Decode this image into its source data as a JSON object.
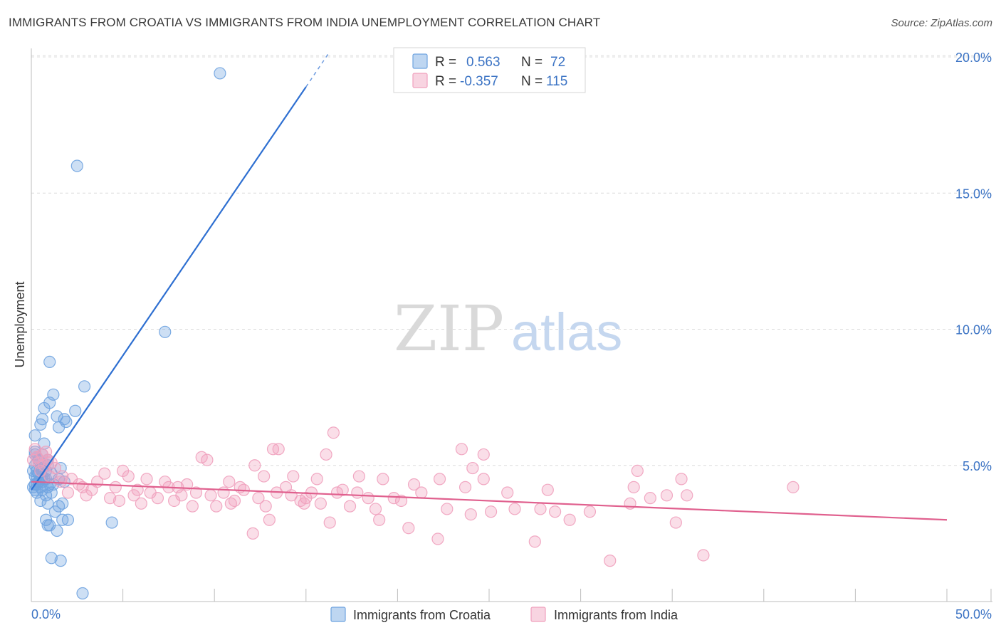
{
  "title": "IMMIGRANTS FROM CROATIA VS IMMIGRANTS FROM INDIA UNEMPLOYMENT CORRELATION CHART",
  "source": "Source: ZipAtlas.com",
  "watermark": {
    "zip": "ZIP",
    "atlas": "atlas"
  },
  "legend": {
    "r_label": "R =",
    "n_label": "N =",
    "rows": [
      {
        "r": "0.563",
        "n": "72",
        "color": "#6fa3e0"
      },
      {
        "r": "-0.357",
        "n": "115",
        "color": "#f0a0bd"
      }
    ]
  },
  "chart_data": {
    "type": "scatter",
    "title": "IMMIGRANTS FROM CROATIA VS IMMIGRANTS FROM INDIA UNEMPLOYMENT CORRELATION CHART",
    "xlabel": "",
    "ylabel": "Unemployment",
    "xlim": [
      0,
      50
    ],
    "ylim": [
      0,
      20
    ],
    "x_tick_labels": [
      "0.0%",
      "50.0%"
    ],
    "y_ticks": [
      5,
      10,
      15,
      20
    ],
    "y_tick_labels": [
      "5.0%",
      "10.0%",
      "15.0%",
      "20.0%"
    ],
    "grid": true,
    "legend_position": "top-center",
    "series": [
      {
        "name": "Immigrants from Croatia",
        "color": "#6fa3e0",
        "line_color": "#2e6fd1",
        "r": 0.563,
        "n": 72,
        "trend": {
          "x": [
            0.0,
            15.0
          ],
          "y": [
            4.1,
            18.9
          ],
          "dashed_extension_to": [
            16.2,
            20.1
          ]
        },
        "points": [
          [
            10.3,
            19.4
          ],
          [
            2.5,
            16.0
          ],
          [
            7.3,
            9.9
          ],
          [
            1.0,
            8.8
          ],
          [
            2.9,
            7.9
          ],
          [
            1.2,
            7.6
          ],
          [
            1.0,
            7.3
          ],
          [
            0.7,
            7.1
          ],
          [
            2.4,
            7.0
          ],
          [
            0.6,
            6.7
          ],
          [
            1.4,
            6.8
          ],
          [
            1.8,
            6.7
          ],
          [
            1.9,
            6.6
          ],
          [
            0.5,
            6.5
          ],
          [
            1.5,
            6.4
          ],
          [
            0.2,
            6.1
          ],
          [
            0.7,
            5.8
          ],
          [
            0.2,
            5.5
          ],
          [
            0.6,
            5.4
          ],
          [
            0.3,
            5.3
          ],
          [
            0.9,
            5.2
          ],
          [
            0.2,
            5.0
          ],
          [
            0.6,
            4.9
          ],
          [
            1.6,
            4.9
          ],
          [
            0.8,
            4.8
          ],
          [
            0.1,
            4.8
          ],
          [
            0.4,
            4.7
          ],
          [
            1.1,
            4.7
          ],
          [
            0.2,
            4.6
          ],
          [
            0.7,
            4.5
          ],
          [
            1.5,
            4.5
          ],
          [
            1.8,
            4.4
          ],
          [
            0.3,
            4.3
          ],
          [
            0.9,
            4.2
          ],
          [
            0.1,
            4.2
          ],
          [
            1.2,
            4.3
          ],
          [
            0.6,
            4.1
          ],
          [
            0.3,
            4.0
          ],
          [
            0.8,
            3.9
          ],
          [
            0.5,
            3.7
          ],
          [
            0.9,
            3.6
          ],
          [
            1.7,
            3.6
          ],
          [
            1.5,
            3.5
          ],
          [
            1.3,
            3.3
          ],
          [
            0.8,
            3.0
          ],
          [
            2.0,
            3.0
          ],
          [
            1.7,
            3.0
          ],
          [
            4.4,
            2.9
          ],
          [
            0.9,
            2.8
          ],
          [
            1.0,
            2.8
          ],
          [
            1.4,
            2.6
          ],
          [
            1.1,
            1.6
          ],
          [
            1.6,
            1.5
          ],
          [
            2.8,
            0.3
          ],
          [
            0.4,
            4.4
          ],
          [
            0.2,
            4.1
          ],
          [
            0.5,
            4.9
          ],
          [
            0.7,
            5.0
          ],
          [
            0.4,
            5.2
          ],
          [
            1.0,
            4.3
          ],
          [
            0.3,
            4.6
          ],
          [
            0.6,
            4.4
          ],
          [
            0.2,
            5.4
          ],
          [
            0.9,
            5.0
          ],
          [
            0.5,
            4.2
          ],
          [
            0.8,
            4.5
          ],
          [
            0.3,
            4.8
          ],
          [
            1.1,
            4.0
          ],
          [
            0.4,
            4.4
          ],
          [
            0.6,
            4.6
          ],
          [
            0.2,
            4.3
          ],
          [
            0.5,
            4.5
          ]
        ]
      },
      {
        "name": "Immigrants from India",
        "color": "#f0a0bd",
        "line_color": "#e0608e",
        "r": -0.357,
        "n": 115,
        "trend": {
          "x": [
            0.0,
            50.0
          ],
          "y": [
            4.4,
            3.0
          ]
        },
        "points": [
          [
            16.5,
            6.2
          ],
          [
            9.3,
            5.3
          ],
          [
            9.6,
            5.2
          ],
          [
            13.2,
            5.6
          ],
          [
            13.5,
            5.6
          ],
          [
            16.1,
            5.4
          ],
          [
            23.5,
            5.6
          ],
          [
            24.7,
            5.4
          ],
          [
            24.1,
            4.9
          ],
          [
            12.2,
            5.0
          ],
          [
            12.7,
            4.6
          ],
          [
            14.3,
            4.6
          ],
          [
            15.6,
            4.5
          ],
          [
            17.9,
            4.6
          ],
          [
            19.2,
            4.5
          ],
          [
            24.7,
            4.5
          ],
          [
            33.1,
            4.8
          ],
          [
            35.5,
            4.5
          ],
          [
            1.7,
            4.6
          ],
          [
            4.0,
            4.7
          ],
          [
            5.0,
            4.8
          ],
          [
            5.3,
            4.6
          ],
          [
            6.3,
            4.5
          ],
          [
            7.3,
            4.4
          ],
          [
            8.5,
            4.3
          ],
          [
            10.8,
            4.4
          ],
          [
            13.9,
            4.2
          ],
          [
            15.3,
            4.0
          ],
          [
            17.0,
            4.1
          ],
          [
            20.9,
            4.3
          ],
          [
            22.3,
            4.5
          ],
          [
            23.7,
            4.2
          ],
          [
            28.2,
            4.1
          ],
          [
            32.9,
            4.2
          ],
          [
            34.7,
            3.9
          ],
          [
            35.8,
            3.9
          ],
          [
            41.6,
            4.2
          ],
          [
            2.6,
            4.3
          ],
          [
            3.3,
            4.1
          ],
          [
            4.6,
            4.2
          ],
          [
            5.8,
            4.1
          ],
          [
            6.5,
            4.0
          ],
          [
            7.5,
            4.2
          ],
          [
            8.2,
            3.9
          ],
          [
            9.0,
            4.0
          ],
          [
            10.5,
            4.0
          ],
          [
            11.6,
            4.1
          ],
          [
            12.4,
            3.8
          ],
          [
            14.2,
            3.9
          ],
          [
            15.0,
            3.8
          ],
          [
            16.7,
            4.0
          ],
          [
            18.4,
            3.8
          ],
          [
            19.8,
            3.8
          ],
          [
            3.0,
            3.9
          ],
          [
            4.8,
            3.7
          ],
          [
            6.0,
            3.6
          ],
          [
            6.9,
            3.8
          ],
          [
            7.8,
            3.7
          ],
          [
            8.8,
            3.5
          ],
          [
            10.1,
            3.5
          ],
          [
            11.1,
            3.7
          ],
          [
            12.8,
            3.5
          ],
          [
            14.7,
            3.7
          ],
          [
            17.4,
            3.5
          ],
          [
            18.8,
            3.4
          ],
          [
            20.2,
            3.7
          ],
          [
            22.7,
            3.4
          ],
          [
            24.0,
            3.2
          ],
          [
            25.1,
            3.3
          ],
          [
            26.4,
            3.4
          ],
          [
            28.6,
            3.3
          ],
          [
            32.7,
            3.6
          ],
          [
            13.0,
            3.0
          ],
          [
            16.3,
            2.9
          ],
          [
            19.0,
            3.0
          ],
          [
            20.6,
            2.7
          ],
          [
            29.4,
            3.0
          ],
          [
            35.2,
            2.9
          ],
          [
            12.1,
            2.5
          ],
          [
            22.2,
            2.3
          ],
          [
            27.5,
            2.2
          ],
          [
            31.6,
            1.5
          ],
          [
            36.7,
            1.7
          ],
          [
            0.3,
            5.3
          ],
          [
            0.6,
            5.4
          ],
          [
            0.9,
            5.2
          ],
          [
            1.3,
            4.9
          ],
          [
            0.7,
            5.0
          ],
          [
            0.4,
            5.1
          ],
          [
            1.0,
            4.6
          ],
          [
            0.2,
            5.6
          ],
          [
            0.5,
            4.8
          ],
          [
            0.8,
            5.5
          ],
          [
            1.6,
            4.4
          ],
          [
            2.2,
            4.5
          ],
          [
            2.8,
            4.2
          ],
          [
            3.6,
            4.4
          ],
          [
            0.1,
            5.2
          ],
          [
            1.1,
            5.1
          ],
          [
            9.8,
            3.9
          ],
          [
            11.4,
            4.2
          ],
          [
            14.9,
            3.6
          ],
          [
            17.8,
            4.0
          ],
          [
            21.3,
            4.0
          ],
          [
            26.0,
            4.0
          ],
          [
            27.8,
            3.4
          ],
          [
            30.5,
            3.3
          ],
          [
            33.8,
            3.8
          ],
          [
            2.0,
            4.0
          ],
          [
            4.3,
            3.8
          ],
          [
            5.6,
            3.9
          ],
          [
            8.0,
            4.2
          ],
          [
            10.9,
            3.6
          ],
          [
            13.4,
            4.0
          ],
          [
            15.8,
            3.6
          ]
        ]
      }
    ]
  }
}
